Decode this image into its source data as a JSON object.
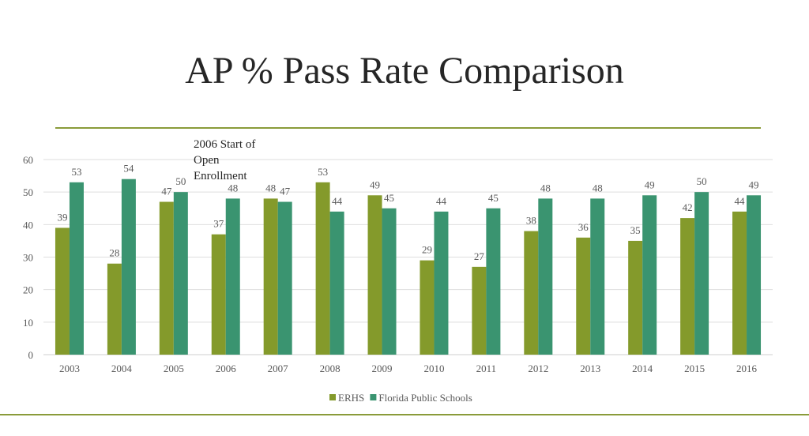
{
  "chart_data": {
    "type": "bar",
    "title": "AP % Pass Rate Comparison",
    "xlabel": "",
    "ylabel": "",
    "ylim": [
      0,
      60
    ],
    "yticks": [
      0,
      10,
      20,
      30,
      40,
      50,
      60
    ],
    "grid": true,
    "legend_position": "bottom",
    "categories": [
      "2003",
      "2004",
      "2005",
      "2006",
      "2007",
      "2008",
      "2009",
      "2010",
      "2011",
      "2012",
      "2013",
      "2014",
      "2015",
      "2016"
    ],
    "series": [
      {
        "name": "ERHS",
        "color": "#849a2b",
        "values": [
          39,
          28,
          47,
          37,
          48,
          53,
          49,
          29,
          27,
          38,
          36,
          35,
          42,
          44
        ]
      },
      {
        "name": "Florida Public Schools",
        "color": "#3a9470",
        "values": [
          53,
          54,
          50,
          48,
          47,
          44,
          45,
          44,
          45,
          48,
          48,
          49,
          50,
          49
        ]
      }
    ],
    "annotation": "2006 Start of Open Enrollment"
  }
}
